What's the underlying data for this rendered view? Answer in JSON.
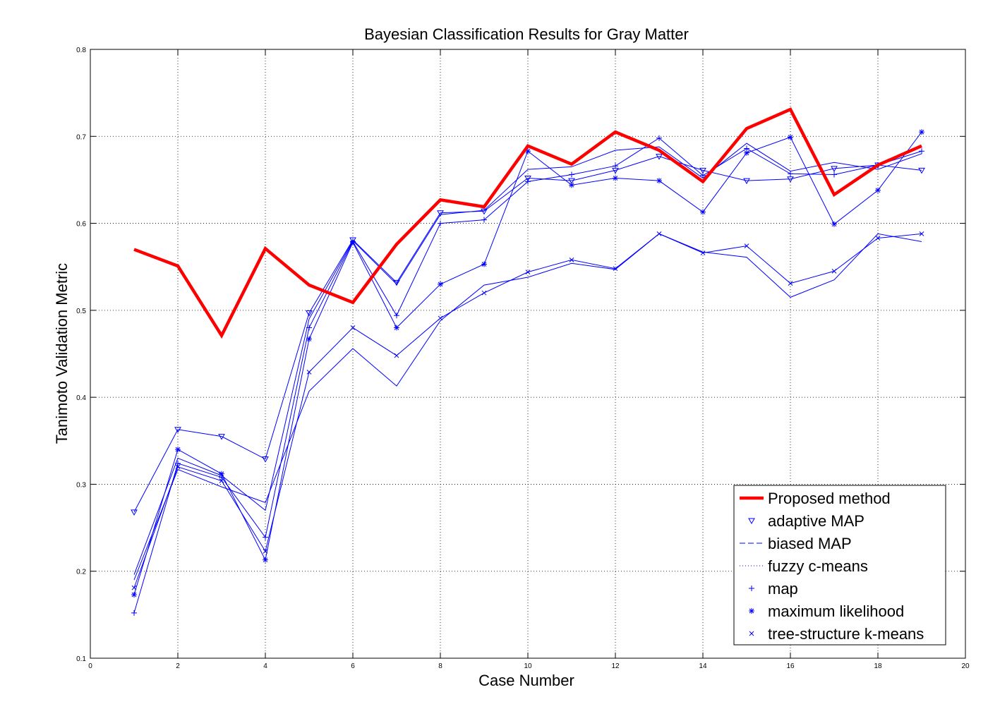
{
  "chart_data": {
    "type": "line",
    "title": "Bayesian Classification Results for Gray Matter",
    "xlabel": "Case Number",
    "ylabel": "Tanimoto Validation Metric",
    "xlim": [
      0,
      20
    ],
    "ylim": [
      0.1,
      0.8
    ],
    "xticks": [
      0,
      2,
      4,
      6,
      8,
      10,
      12,
      14,
      16,
      18,
      20
    ],
    "yticks": [
      0.1,
      0.2,
      0.3,
      0.4,
      0.5,
      0.6,
      0.7,
      0.8
    ],
    "xtick_labels": [
      "0",
      "2",
      "4",
      "6",
      "8",
      "10",
      "12",
      "14",
      "16",
      "18",
      "20"
    ],
    "ytick_labels": [
      "0.1",
      "0.2",
      "0.3",
      "0.4",
      "0.5",
      "0.6",
      "0.7",
      "0.8"
    ],
    "grid": true,
    "legend_position": "bottom-right",
    "x": [
      1,
      2,
      3,
      4,
      5,
      6,
      7,
      8,
      9,
      10,
      11,
      12,
      13,
      14,
      15,
      16,
      17,
      18,
      19
    ],
    "series": [
      {
        "name": "Proposed method",
        "color": "#ff0000",
        "marker": "none",
        "line": "solid",
        "values": [
          0.57,
          0.551,
          0.471,
          0.571,
          0.529,
          0.509,
          0.576,
          0.627,
          0.619,
          0.689,
          0.668,
          0.705,
          0.684,
          0.648,
          0.709,
          0.731,
          0.633,
          0.667,
          0.689
        ]
      },
      {
        "name": "adaptive MAP",
        "color": "#0000ff",
        "marker": "triangle-down",
        "line": "solid",
        "values": [
          0.268,
          0.363,
          0.355,
          0.329,
          0.497,
          0.581,
          0.532,
          0.612,
          0.614,
          0.652,
          0.649,
          0.661,
          0.677,
          0.661,
          0.649,
          0.651,
          0.663,
          0.667,
          0.661
        ]
      },
      {
        "name": "biased MAP",
        "color": "#0000ff",
        "marker": "none",
        "line": "solid",
        "values": [
          0.196,
          0.33,
          0.31,
          0.27,
          0.49,
          0.58,
          0.53,
          0.61,
          0.615,
          0.662,
          0.665,
          0.684,
          0.688,
          0.652,
          0.692,
          0.66,
          0.67,
          0.662,
          0.68
        ]
      },
      {
        "name": "fuzzy c-means",
        "color": "#0000ff",
        "marker": "none",
        "line": "solid",
        "values": [
          0.19,
          0.317,
          0.297,
          0.279,
          0.407,
          0.456,
          0.413,
          0.488,
          0.529,
          0.538,
          0.554,
          0.547,
          0.588,
          0.567,
          0.561,
          0.515,
          0.535,
          0.588,
          0.579
        ]
      },
      {
        "name": "map",
        "color": "#0000ff",
        "marker": "plus",
        "line": "solid",
        "values": [
          0.152,
          0.324,
          0.308,
          0.239,
          0.48,
          0.579,
          0.494,
          0.6,
          0.604,
          0.648,
          0.656,
          0.666,
          0.698,
          0.655,
          0.686,
          0.657,
          0.656,
          0.667,
          0.683
        ]
      },
      {
        "name": "maximum likelihood",
        "color": "#0000ff",
        "marker": "asterisk",
        "line": "solid",
        "values": [
          0.173,
          0.34,
          0.312,
          0.213,
          0.467,
          0.578,
          0.48,
          0.53,
          0.553,
          0.683,
          0.644,
          0.652,
          0.649,
          0.613,
          0.681,
          0.699,
          0.599,
          0.638,
          0.705
        ]
      },
      {
        "name": "tree-structure k-means",
        "color": "#0000ff",
        "marker": "x",
        "line": "solid",
        "values": [
          0.181,
          0.32,
          0.304,
          0.223,
          0.429,
          0.48,
          0.448,
          0.491,
          0.52,
          0.544,
          0.558,
          0.548,
          0.588,
          0.566,
          0.574,
          0.531,
          0.545,
          0.583,
          0.588
        ]
      }
    ],
    "legend": [
      {
        "label": "Proposed method",
        "series": 0,
        "swatch": "line-thick-red"
      },
      {
        "label": "adaptive MAP",
        "series": 1,
        "swatch": "triangle-down"
      },
      {
        "label": "biased MAP",
        "series": 2,
        "swatch": "dashed-line"
      },
      {
        "label": "fuzzy c-means",
        "series": 3,
        "swatch": "dotted-line"
      },
      {
        "label": "map",
        "series": 4,
        "swatch": "plus"
      },
      {
        "label": "maximum likelihood",
        "series": 5,
        "swatch": "asterisk"
      },
      {
        "label": "tree-structure k-means",
        "series": 6,
        "swatch": "x"
      }
    ]
  }
}
